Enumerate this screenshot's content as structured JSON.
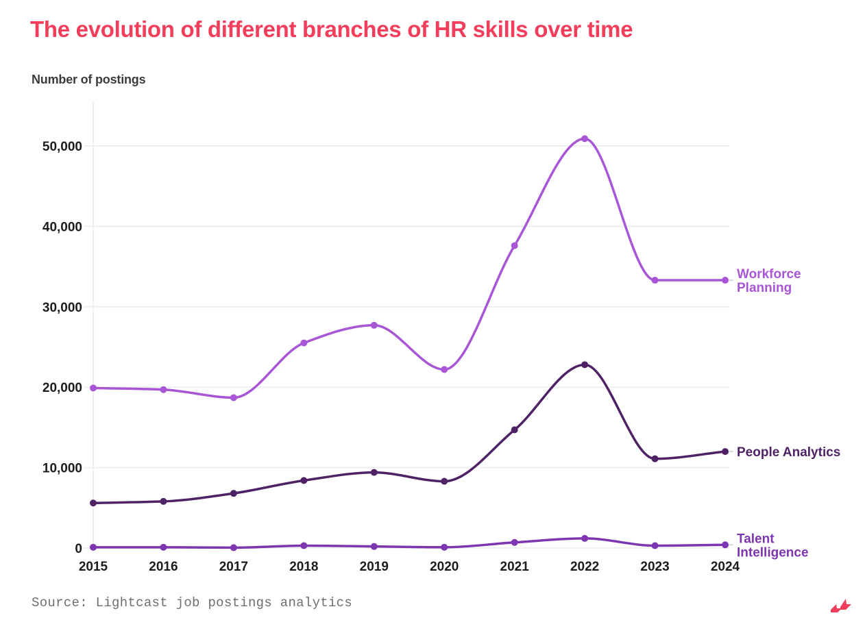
{
  "title": "The evolution of different branches of HR skills over time",
  "source": "Source: Lightcast job postings analytics",
  "colors": {
    "title": "#f23d5b",
    "workforce_planning": "#a855d6",
    "people_analytics": "#4f2266",
    "talent_intelligence": "#7e35b0",
    "grid": "#efefef",
    "logo": "#f23d5b"
  },
  "logo_icon": "lightcast-logo-icon",
  "chart_data": {
    "type": "line",
    "title": "The evolution of different branches of HR skills over time",
    "xlabel": "",
    "ylabel": "Number of postings",
    "x": [
      "2015",
      "2016",
      "2017",
      "2018",
      "2019",
      "2020",
      "2021",
      "2022",
      "2023",
      "2024"
    ],
    "ylim": [
      0,
      55000
    ],
    "yticks": [
      0,
      10000,
      20000,
      30000,
      40000,
      50000
    ],
    "ytick_labels": [
      "0",
      "10,000",
      "20,000",
      "30,000",
      "40,000",
      "50,000"
    ],
    "grid": "horizontal",
    "legend": "inline-right",
    "series": [
      {
        "name": "Workforce Planning",
        "label_lines": [
          "Workforce",
          "Planning"
        ],
        "color_key": "workforce_planning",
        "values": [
          19900,
          19700,
          18700,
          25500,
          27700,
          22200,
          37600,
          50900,
          33300,
          33300
        ]
      },
      {
        "name": "People Analytics",
        "label_lines": [
          "People Analytics"
        ],
        "color_key": "people_analytics",
        "values": [
          5600,
          5800,
          6800,
          8400,
          9400,
          8300,
          14700,
          22800,
          11100,
          12000
        ]
      },
      {
        "name": "Talent Intelligence",
        "label_lines": [
          "Talent",
          "Intelligence"
        ],
        "color_key": "talent_intelligence",
        "values": [
          100,
          100,
          50,
          300,
          200,
          100,
          700,
          1200,
          300,
          400
        ]
      }
    ]
  }
}
